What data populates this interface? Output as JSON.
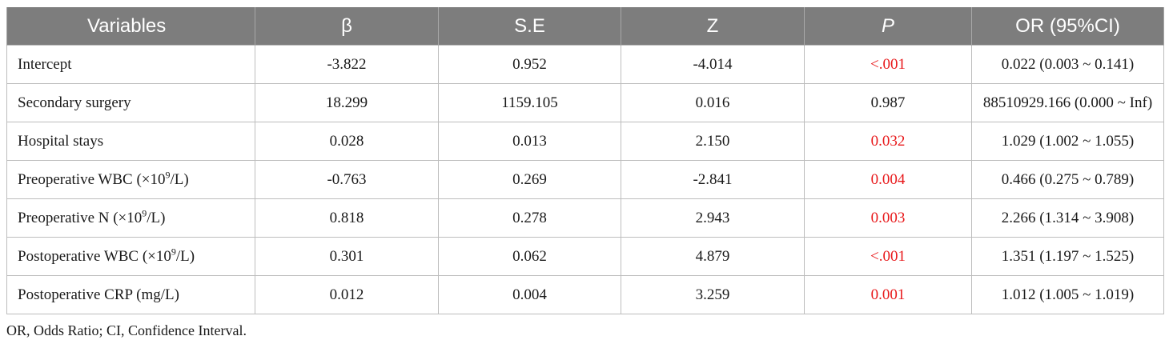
{
  "table": {
    "headers": [
      "Variables",
      "β",
      "S.E",
      "Z",
      "P",
      "OR (95%CI)"
    ],
    "rows": [
      {
        "variable": "Intercept",
        "beta": "-3.822",
        "se": "0.952",
        "z": "-4.014",
        "p": "<.001",
        "or": "0.022 (0.003 ~ 0.141)",
        "significant": true
      },
      {
        "variable": "Secondary surgery",
        "beta": "18.299",
        "se": "1159.105",
        "z": "0.016",
        "p": "0.987",
        "or": "88510929.166 (0.000 ~ Inf)",
        "significant": false
      },
      {
        "variable": "Hospital stays",
        "beta": "0.028",
        "se": "0.013",
        "z": "2.150",
        "p": "0.032",
        "or": "1.029 (1.002 ~ 1.055)",
        "significant": true
      },
      {
        "variable_prefix": "Preoperative WBC (×10",
        "variable_sup": "9",
        "variable_suffix": "/L)",
        "beta": "-0.763",
        "se": "0.269",
        "z": "-2.841",
        "p": "0.004",
        "or": "0.466 (0.275 ~ 0.789)",
        "significant": true
      },
      {
        "variable_prefix": "Preoperative N (×10",
        "variable_sup": "9",
        "variable_suffix": "/L)",
        "beta": "0.818",
        "se": "0.278",
        "z": "2.943",
        "p": "0.003",
        "or": "2.266 (1.314 ~ 3.908)",
        "significant": true
      },
      {
        "variable_prefix": "Postoperative WBC (×10",
        "variable_sup": "9",
        "variable_suffix": "/L)",
        "beta": "0.301",
        "se": "0.062",
        "z": "4.879",
        "p": "<.001",
        "or": "1.351 (1.197 ~ 1.525)",
        "significant": true
      },
      {
        "variable": "Postoperative CRP (mg/L)",
        "beta": "0.012",
        "se": "0.004",
        "z": "3.259",
        "p": "0.001",
        "or": "1.012 (1.005 ~ 1.019)",
        "significant": true
      }
    ]
  },
  "colors": {
    "header_bg": "#7d7d7d",
    "header_text": "#ffffff",
    "significant_p": "#e8191b",
    "grid": "#bdbdbd"
  },
  "footnote": "OR, Odds Ratio; CI, Confidence Interval."
}
